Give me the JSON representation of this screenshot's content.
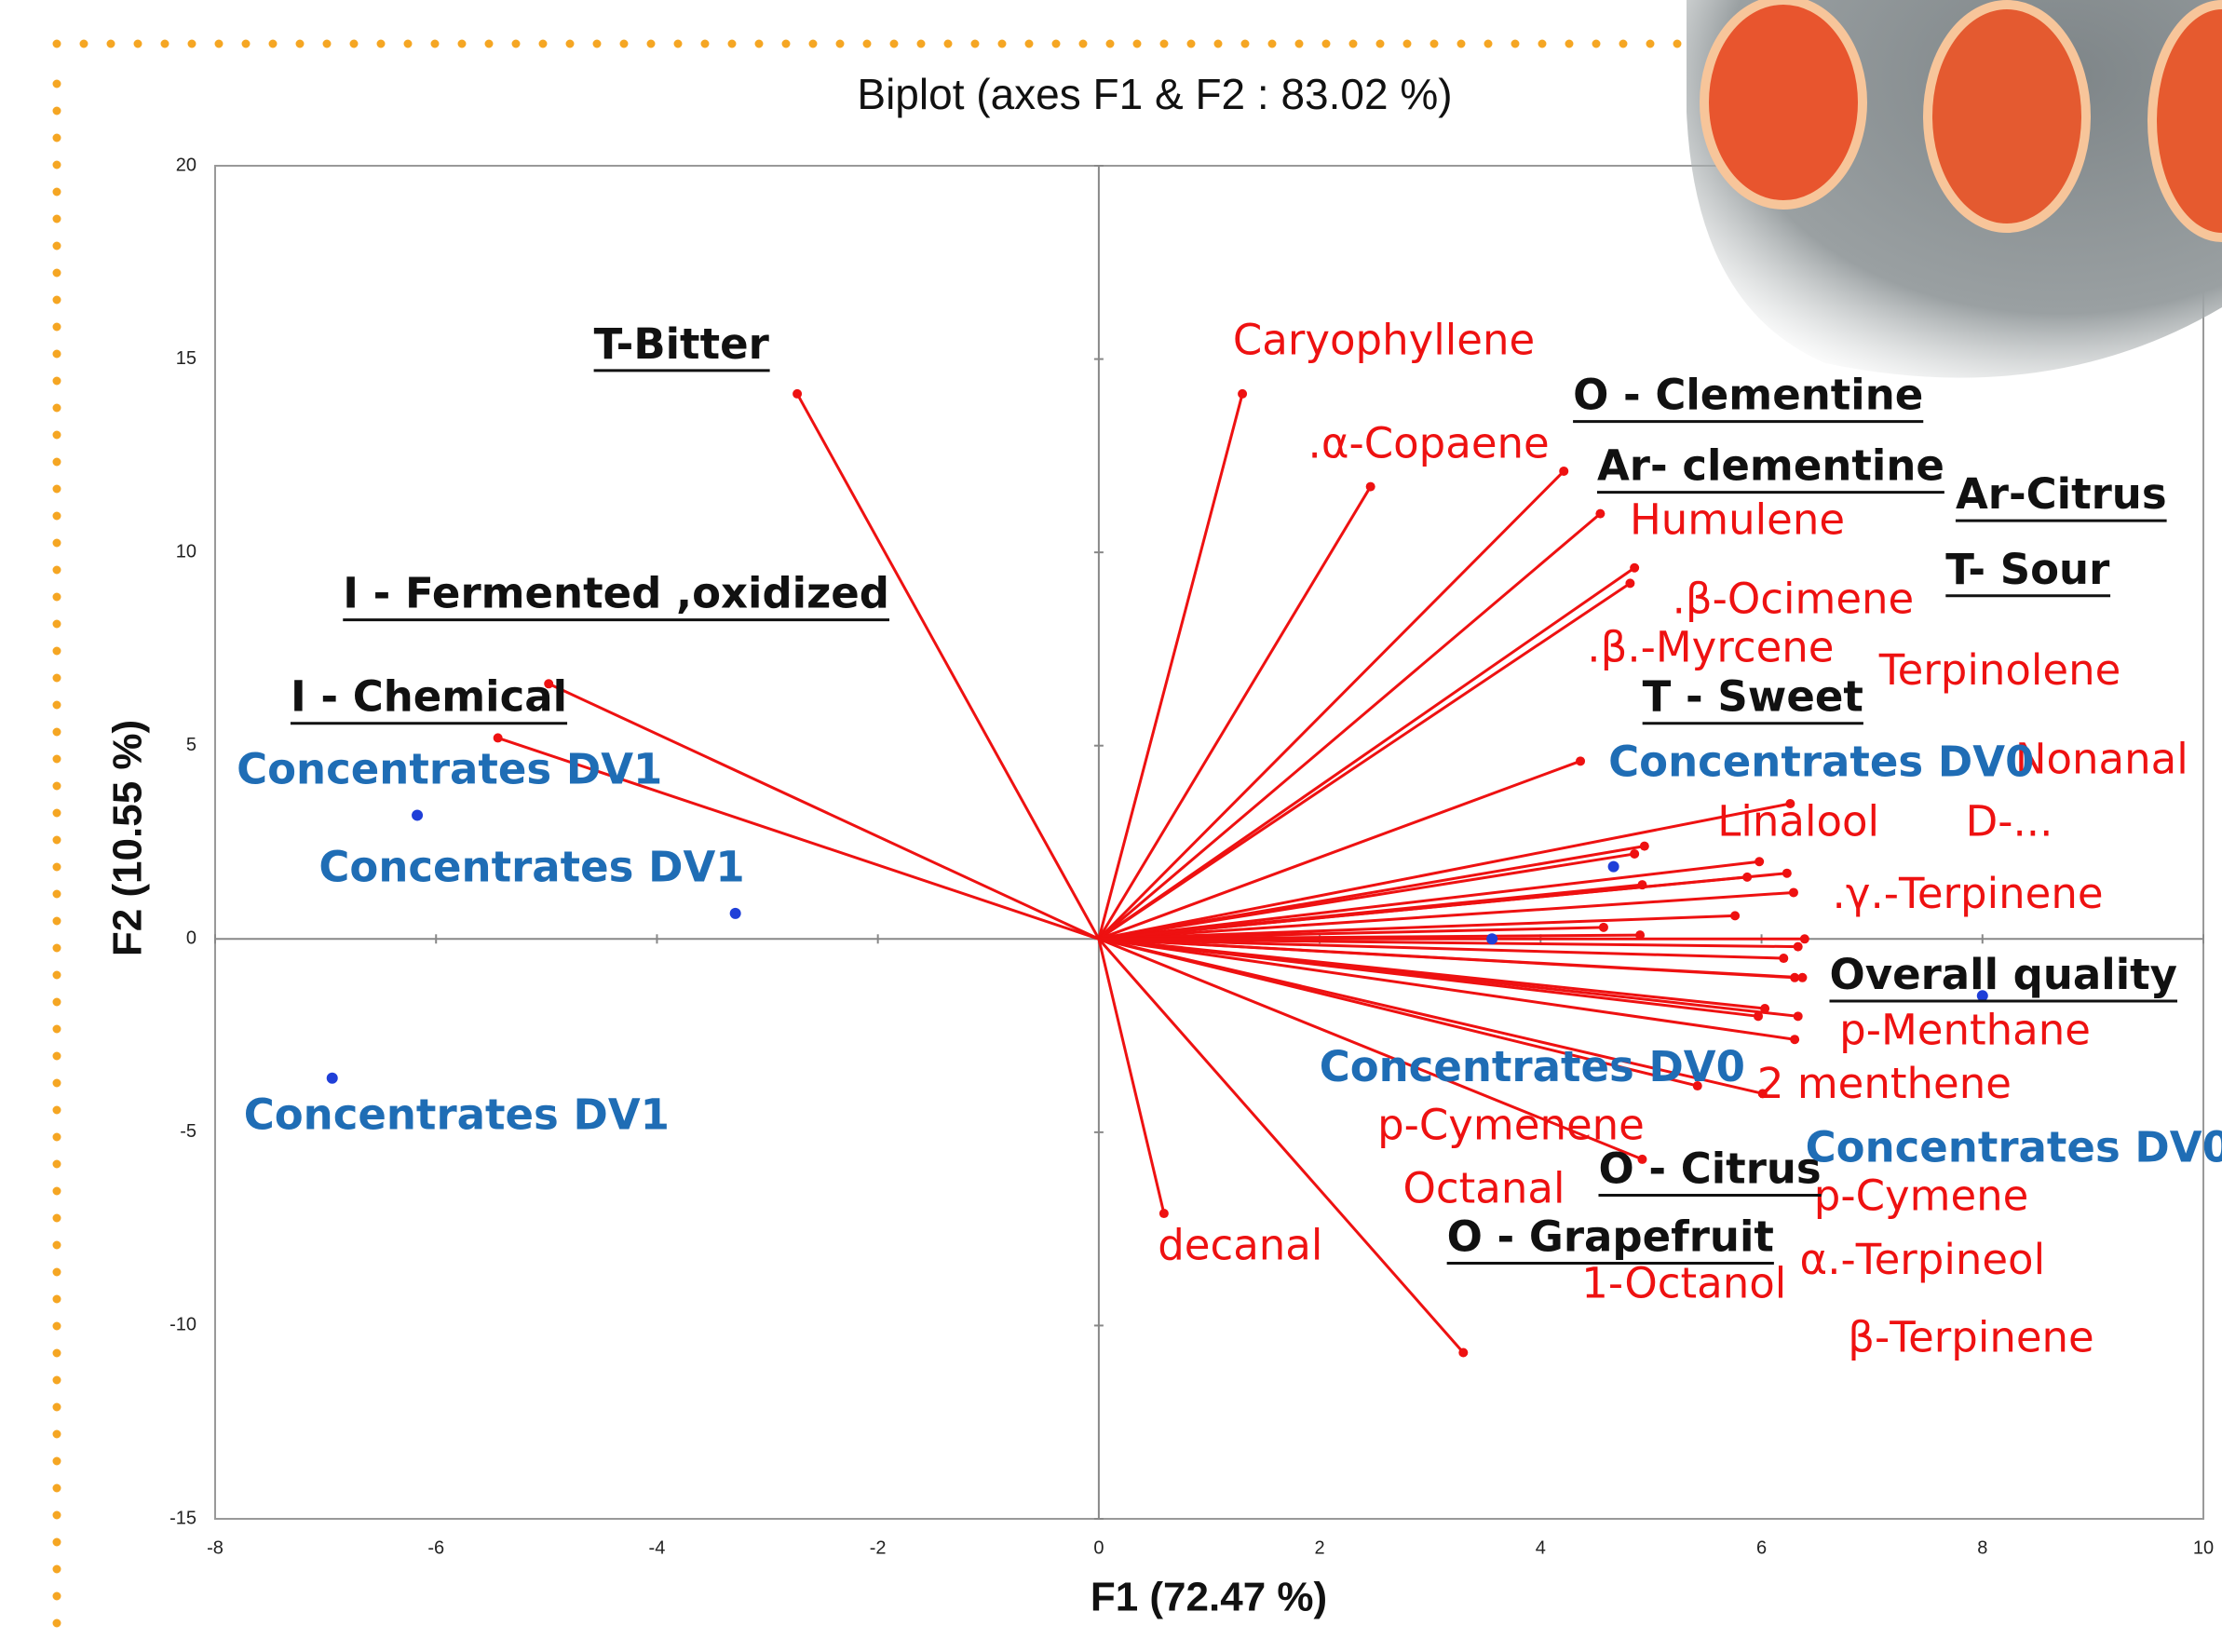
{
  "chart_data": {
    "type": "biplot",
    "title": "Biplot (axes F1 & F2 : 83.02 %)",
    "x_label": "F1 (72.47 %)",
    "y_label": "F2 (10.55 %)",
    "xlim": [
      -8,
      10
    ],
    "ylim": [
      -15,
      20
    ],
    "xticks": [
      -8,
      -6,
      -4,
      -2,
      0,
      2,
      4,
      6,
      8,
      10
    ],
    "yticks": [
      20,
      15,
      10,
      5,
      0,
      -5,
      -10,
      -15
    ],
    "observations": {
      "color": "#1f3fd8",
      "label_color": "#1f6db5",
      "names": [
        "Concentrates DV1",
        "Concentrates DV1",
        "Concentrates DV1",
        "Concentrates DV0",
        "Concentrates DV0",
        "Concentrates DV0"
      ],
      "x": [
        -6.17,
        -3.29,
        -6.94,
        4.66,
        3.56,
        8.0
      ],
      "y": [
        3.2,
        0.66,
        -3.6,
        1.87,
        0.0,
        -1.47
      ]
    },
    "sensory_vectors": {
      "color": "#ee1111",
      "label_color": "#111111",
      "names": [
        "T-Bitter",
        "I - Fermented ,oxidized",
        "I - Chemical",
        "O - Clementine",
        "Ar- clementine",
        "Ar-Citrus",
        "T- Sour",
        "T - Sweet",
        "Overall quality",
        "O - Citrus",
        "O - Grapefruit"
      ],
      "x": [
        -2.73,
        -4.98,
        -5.44,
        4.21,
        4.54,
        6.26,
        6.23,
        4.36,
        6.39,
        4.92,
        3.3
      ],
      "y": [
        14.1,
        6.6,
        5.2,
        12.1,
        11.0,
        3.5,
        1.7,
        4.6,
        0.0,
        -5.7,
        -10.7
      ]
    },
    "volatile_vectors": {
      "color": "#ee1111",
      "label_color": "#ee1111",
      "names": [
        "Caryophyllene",
        ".α-Copaene",
        "Humulene",
        ".β-Ocimene",
        ".β.-Myrcene",
        "Terpinolene",
        "Nonanal",
        "Linalool",
        "D-...",
        ".γ.-Terpinene",
        "p-Menthane",
        "2 menthene",
        "p-Cymenene",
        "p-Cymene",
        "Octanal",
        "1-Octanol",
        "α.-Terpineol",
        "β-Terpinene",
        "decanal",
        null,
        null,
        null,
        null,
        null
      ],
      "x": [
        1.3,
        2.46,
        4.85,
        4.81,
        4.94,
        4.85,
        5.98,
        4.92,
        5.87,
        6.29,
        6.33,
        6.01,
        5.42,
        6.3,
        4.57,
        4.9,
        6.2,
        6.37,
        0.59,
        5.76,
        5.97,
        6.33,
        6.03,
        6.3
      ],
      "y": [
        14.1,
        11.7,
        9.6,
        9.2,
        2.4,
        2.2,
        2.0,
        1.4,
        1.6,
        1.2,
        -0.2,
        -4.0,
        -3.8,
        -1.0,
        0.3,
        0.1,
        -0.5,
        -1.0,
        -7.1,
        0.6,
        -2.0,
        -2.0,
        -1.8,
        -2.6
      ]
    }
  }
}
